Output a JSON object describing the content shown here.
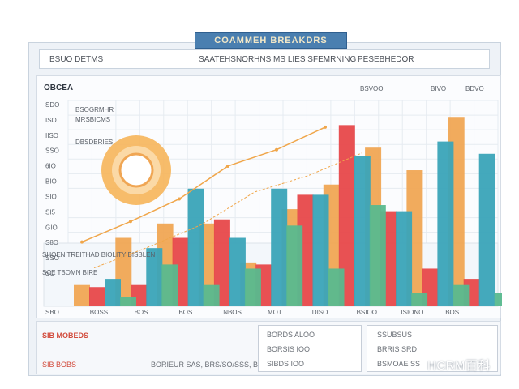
{
  "header": {
    "title": "COAMMEH BREAKDRS",
    "left": "BSUO DETMS",
    "center": "SAATEHSNORHNS MS LIES SFEMRNING",
    "right": "PESEBHEDOR"
  },
  "panel": {
    "label": "OBCEA",
    "top_labels": [
      "BSVOO",
      "BIVO",
      "BDVO"
    ],
    "line_labels": [
      "BSOGRMHR",
      "MRSBICMS",
      "DBSDBRIES"
    ],
    "lower_labels": [
      "SHOEN TREITHAD BIOLITY BISBLEN",
      "SCE TBOMN BIRE"
    ]
  },
  "chart_data": {
    "type": "bar",
    "title": "COAMMEH BREAKDRS",
    "y_tick_labels": [
      "SDO",
      "ISO",
      "IISO",
      "SSO",
      "6IO",
      "BIO",
      "SIO",
      "SI5",
      "GIO",
      "S8O",
      "SSO",
      "SO"
    ],
    "x_tick_labels": [
      "SBO",
      "BOSS",
      "BOS",
      "BOS",
      "NBOS",
      "MOT",
      "DISO",
      "BSIOO",
      "ISIONO",
      "BOS"
    ],
    "series": [
      {
        "color": "#f0a654",
        "values": [
          10,
          33,
          40,
          40,
          21,
          47,
          59,
          77,
          66,
          92
        ]
      },
      {
        "color": "#e7484a",
        "values": [
          9,
          10,
          33,
          42,
          20,
          54,
          88,
          46,
          18,
          13
        ]
      },
      {
        "color": "#3aa4b8",
        "values": [
          13,
          28,
          57,
          33,
          57,
          54,
          73,
          46,
          80,
          74
        ]
      },
      {
        "color": "#59b98e",
        "values": [
          4,
          20,
          10,
          18,
          39,
          18,
          49,
          6,
          10,
          6
        ]
      }
    ],
    "line": {
      "color": "#f0a64a",
      "values": [
        31,
        41,
        52,
        68,
        76,
        87
      ]
    }
  },
  "footer": {
    "row1_left": "SIB MOBEDS",
    "row2_left": "SIB BOBS",
    "row2_mid": "BORIEUR SAS, BRS/SO/SSS, BOS",
    "cells": [
      "BORDS ALOO",
      "BORSIS IOO",
      "SIBDS IOO",
      "SSUBSUS",
      "BRRIS SRD",
      "BSMOAE SS"
    ]
  },
  "watermark": "HCRM百科"
}
